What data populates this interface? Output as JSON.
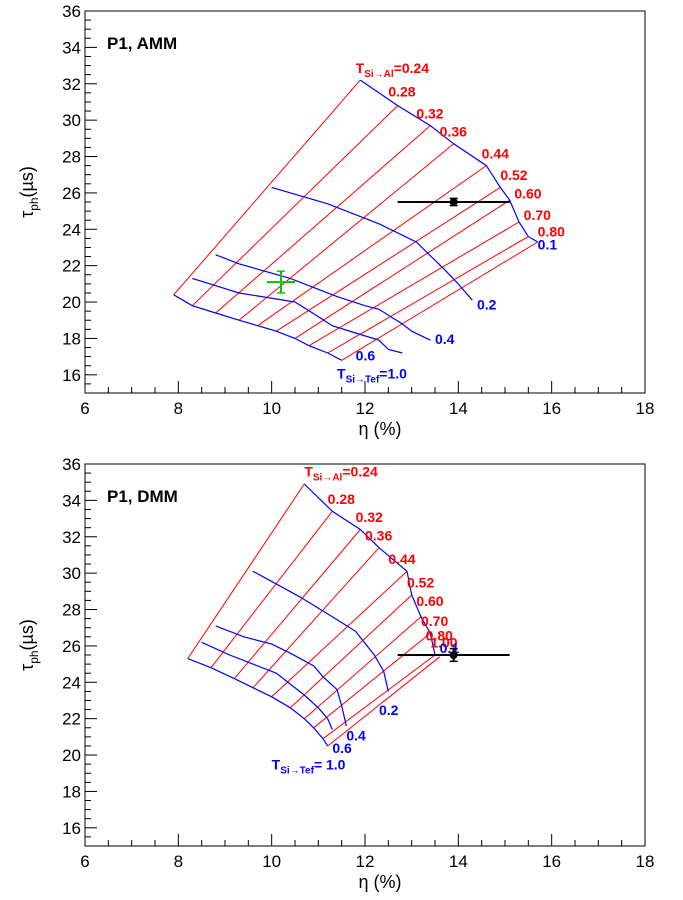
{
  "colors": {
    "red": "#ff0000",
    "blue": "#0000ff",
    "green": "#00cc00",
    "black": "#000000"
  },
  "chart_data": [
    {
      "type": "line",
      "title": "P1, AMM",
      "xlabel": "η (%)",
      "ylabel_main": "τ",
      "ylabel_sub": "ph",
      "ylabel_unit": "(µs)",
      "xlim": [
        6,
        18
      ],
      "ylim": [
        15,
        36
      ],
      "xticks": [
        6,
        8,
        10,
        12,
        14,
        16,
        18
      ],
      "yticks": [
        16,
        18,
        20,
        22,
        24,
        26,
        28,
        30,
        32,
        34,
        36
      ],
      "xtick_labels": [
        "6",
        "8",
        "10",
        "12",
        "14",
        "16",
        "18"
      ],
      "ytick_labels": [
        "16",
        "18",
        "20",
        "22",
        "24",
        "26",
        "28",
        "30",
        "32",
        "34",
        "36"
      ],
      "red_lines": [
        [
          [
            7.9,
            20.4
          ],
          [
            11.9,
            32.2
          ]
        ],
        [
          [
            8.3,
            19.8
          ],
          [
            12.7,
            30.8
          ]
        ],
        [
          [
            8.8,
            19.4
          ],
          [
            13.4,
            29.7
          ]
        ],
        [
          [
            9.3,
            19.0
          ],
          [
            13.9,
            28.7
          ]
        ],
        [
          [
            9.7,
            18.7
          ],
          [
            14.6,
            27.5
          ]
        ],
        [
          [
            10.1,
            18.4
          ],
          [
            14.9,
            26.3
          ]
        ],
        [
          [
            10.5,
            18.0
          ],
          [
            15.1,
            25.6
          ]
        ],
        [
          [
            10.8,
            17.6
          ],
          [
            15.3,
            24.4
          ]
        ],
        [
          [
            11.2,
            17.2
          ],
          [
            15.5,
            23.6
          ]
        ],
        [
          [
            11.5,
            16.8
          ],
          [
            15.7,
            23.3
          ]
        ]
      ],
      "blue_lines": [
        [
          [
            11.9,
            32.2
          ],
          [
            12.7,
            30.8
          ],
          [
            13.4,
            29.7
          ],
          [
            13.9,
            28.7
          ],
          [
            14.6,
            27.5
          ],
          [
            14.9,
            26.3
          ],
          [
            15.1,
            25.6
          ],
          [
            15.3,
            24.4
          ],
          [
            15.5,
            23.6
          ],
          [
            15.7,
            23.3
          ]
        ],
        [
          [
            10.0,
            26.3
          ],
          [
            11.2,
            25.4
          ],
          [
            12.3,
            24.3
          ],
          [
            13.1,
            23.3
          ],
          [
            13.7,
            21.8
          ],
          [
            14.0,
            21.0
          ],
          [
            14.3,
            20.1
          ]
        ],
        [
          [
            8.8,
            22.6
          ],
          [
            9.3,
            22.1
          ],
          [
            10.4,
            21.3
          ],
          [
            11.4,
            20.3
          ],
          [
            12.0,
            19.8
          ],
          [
            12.3,
            19.6
          ],
          [
            12.8,
            18.8
          ],
          [
            13.0,
            18.4
          ],
          [
            13.4,
            17.9
          ]
        ],
        [
          [
            8.3,
            21.3
          ],
          [
            8.8,
            20.9
          ],
          [
            9.3,
            20.5
          ],
          [
            10.5,
            20.0
          ],
          [
            11.0,
            19.2
          ],
          [
            11.3,
            18.7
          ],
          [
            11.8,
            18.3
          ],
          [
            12.3,
            17.9
          ],
          [
            12.5,
            17.4
          ],
          [
            12.8,
            17.2
          ]
        ],
        [
          [
            7.9,
            20.4
          ],
          [
            8.3,
            19.8
          ],
          [
            8.8,
            19.4
          ],
          [
            9.3,
            19.0
          ],
          [
            9.7,
            18.7
          ],
          [
            10.1,
            18.4
          ],
          [
            10.5,
            18.0
          ],
          [
            10.8,
            17.6
          ],
          [
            11.2,
            17.2
          ],
          [
            11.5,
            16.8
          ]
        ]
      ],
      "red_labels": [
        {
          "main": "T",
          "sub": "Si→Al",
          "rest": "=0.24",
          "x": 11.8,
          "y": 32.6
        },
        {
          "text": "0.28",
          "x": 12.5,
          "y": 31.3
        },
        {
          "text": "0.32",
          "x": 13.1,
          "y": 30.1
        },
        {
          "text": "0.36",
          "x": 13.6,
          "y": 29.1
        },
        {
          "text": "0.44",
          "x": 14.5,
          "y": 27.9
        },
        {
          "text": "0.52",
          "x": 14.9,
          "y": 26.7
        },
        {
          "text": "0.60",
          "x": 15.2,
          "y": 25.7
        },
        {
          "text": "0.70",
          "x": 15.4,
          "y": 24.5
        },
        {
          "text": "0.80",
          "x": 15.7,
          "y": 23.6
        }
      ],
      "blue_labels": [
        {
          "text": "0.1",
          "x": 15.7,
          "y": 22.9
        },
        {
          "text": "0.2",
          "x": 14.4,
          "y": 19.6
        },
        {
          "text": "0.4",
          "x": 13.5,
          "y": 17.7
        },
        {
          "text": "0.6",
          "x": 11.8,
          "y": 16.8
        },
        {
          "main": "T",
          "sub": "Si→Tef",
          "rest": "=1.0",
          "x": 11.4,
          "y": 15.8
        }
      ],
      "points": [
        {
          "x": 13.9,
          "y": 25.5,
          "xerr_low": 12.7,
          "xerr_high": 15.1,
          "yerr": 0.2,
          "color": "black",
          "marker": "dot"
        },
        {
          "x": 10.2,
          "y": 21.1,
          "xerr_low": 9.9,
          "xerr_high": 10.5,
          "yerr": 0.6,
          "color": "green",
          "marker": "cross"
        }
      ]
    },
    {
      "type": "line",
      "title": "P1, DMM",
      "xlabel": "η (%)",
      "ylabel_main": "τ",
      "ylabel_sub": "ph",
      "ylabel_unit": "(µs)",
      "xlim": [
        6,
        18
      ],
      "ylim": [
        15,
        36
      ],
      "xticks": [
        6,
        8,
        10,
        12,
        14,
        16,
        18
      ],
      "yticks": [
        16,
        18,
        20,
        22,
        24,
        26,
        28,
        30,
        32,
        34,
        36
      ],
      "xtick_labels": [
        "6",
        "8",
        "10",
        "12",
        "14",
        "16",
        "18"
      ],
      "ytick_labels": [
        "16",
        "18",
        "20",
        "22",
        "24",
        "26",
        "28",
        "30",
        "32",
        "34",
        "36"
      ],
      "red_lines": [
        [
          [
            8.2,
            25.3
          ],
          [
            10.7,
            34.9
          ]
        ],
        [
          [
            8.7,
            24.8
          ],
          [
            11.3,
            33.4
          ]
        ],
        [
          [
            9.2,
            24.2
          ],
          [
            11.9,
            32.4
          ]
        ],
        [
          [
            9.6,
            23.7
          ],
          [
            12.3,
            31.4
          ]
        ],
        [
          [
            10.0,
            23.2
          ],
          [
            12.9,
            30.1
          ]
        ],
        [
          [
            10.4,
            22.6
          ],
          [
            13.0,
            28.8
          ]
        ],
        [
          [
            10.7,
            22.0
          ],
          [
            13.2,
            27.6
          ]
        ],
        [
          [
            10.9,
            21.5
          ],
          [
            13.4,
            26.7
          ]
        ],
        [
          [
            11.1,
            20.9
          ],
          [
            13.5,
            25.5
          ]
        ],
        [
          [
            11.2,
            20.5
          ],
          [
            13.6,
            25.4
          ]
        ]
      ],
      "blue_lines": [
        [
          [
            10.7,
            34.9
          ],
          [
            11.3,
            33.4
          ],
          [
            11.9,
            32.4
          ],
          [
            12.3,
            31.4
          ],
          [
            12.9,
            30.1
          ],
          [
            13.0,
            28.8
          ],
          [
            13.2,
            27.6
          ],
          [
            13.4,
            26.7
          ],
          [
            13.5,
            25.5
          ]
        ],
        [
          [
            9.6,
            30.1
          ],
          [
            10.6,
            28.7
          ],
          [
            11.3,
            27.6
          ],
          [
            11.8,
            26.8
          ],
          [
            12.2,
            25.5
          ],
          [
            12.4,
            24.6
          ],
          [
            12.5,
            23.5
          ]
        ],
        [
          [
            8.8,
            27.1
          ],
          [
            9.4,
            26.5
          ],
          [
            10.0,
            26.1
          ],
          [
            10.4,
            25.6
          ],
          [
            10.9,
            24.9
          ],
          [
            11.1,
            24.3
          ],
          [
            11.4,
            23.6
          ],
          [
            11.5,
            22.7
          ],
          [
            11.6,
            21.6
          ]
        ],
        [
          [
            8.5,
            26.2
          ],
          [
            9.1,
            25.5
          ],
          [
            9.6,
            25.0
          ],
          [
            10.1,
            24.5
          ],
          [
            10.4,
            23.9
          ],
          [
            10.7,
            23.3
          ],
          [
            11.0,
            22.6
          ],
          [
            11.2,
            22.0
          ],
          [
            11.3,
            21.4
          ]
        ],
        [
          [
            8.2,
            25.3
          ],
          [
            8.7,
            24.8
          ],
          [
            9.2,
            24.2
          ],
          [
            9.6,
            23.7
          ],
          [
            10.0,
            23.2
          ],
          [
            10.4,
            22.6
          ],
          [
            10.7,
            22.0
          ],
          [
            10.9,
            21.5
          ],
          [
            11.1,
            20.9
          ],
          [
            11.2,
            20.5
          ]
        ]
      ],
      "red_labels": [
        {
          "main": "T",
          "sub": "Si→Al",
          "rest": "=0.24",
          "x": 10.7,
          "y": 35.3
        },
        {
          "text": "0.28",
          "x": 11.2,
          "y": 33.8
        },
        {
          "text": "0.32",
          "x": 11.8,
          "y": 32.8
        },
        {
          "text": "0.36",
          "x": 12.0,
          "y": 31.8
        },
        {
          "text": "0.44",
          "x": 12.5,
          "y": 30.5
        },
        {
          "text": "0.52",
          "x": 12.9,
          "y": 29.2
        },
        {
          "text": "0.60",
          "x": 13.1,
          "y": 28.2
        },
        {
          "text": "0.70",
          "x": 13.2,
          "y": 27.1
        },
        {
          "text": "0.80",
          "x": 13.3,
          "y": 26.3
        },
        {
          "text": "1.00",
          "x": 13.4,
          "y": 25.9
        }
      ],
      "blue_labels": [
        {
          "text": "0.1",
          "x": 13.6,
          "y": 25.6
        },
        {
          "text": "0.2",
          "x": 12.3,
          "y": 22.2
        },
        {
          "text": "0.4",
          "x": 11.6,
          "y": 20.8
        },
        {
          "text": "0.6",
          "x": 11.3,
          "y": 20.1
        },
        {
          "main": "T",
          "sub": "Si→Tef",
          "rest": "= 1.0",
          "x": 10.0,
          "y": 19.2
        }
      ],
      "points": [
        {
          "x": 13.9,
          "y": 25.5,
          "xerr_low": 12.7,
          "xerr_high": 15.1,
          "yerr": 0.35,
          "color": "black",
          "marker": "dot"
        }
      ]
    }
  ]
}
